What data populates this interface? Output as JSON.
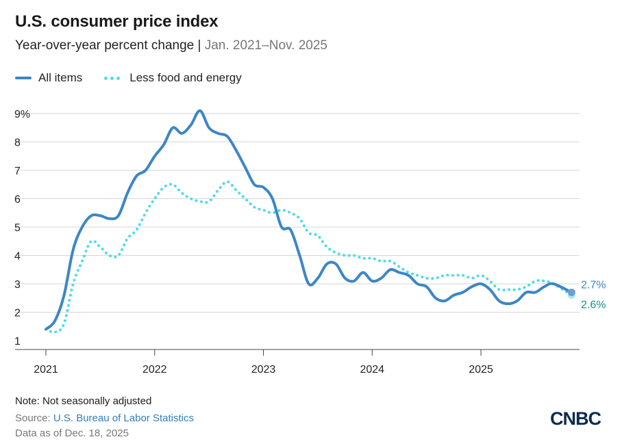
{
  "header": {
    "title": "U.S. consumer price index",
    "subtitle_main": "Year-over-year percent change |",
    "subtitle_range": "Jan. 2021–Nov. 2025"
  },
  "legend": {
    "all_items": "All items",
    "core": "Less food and energy"
  },
  "footer": {
    "note": "Note: Not seasonally adjusted",
    "source_prefix": "Source:",
    "source_link": "U.S. Bureau of Labor Statistics",
    "as_of": "Data as of Dec. 18, 2025"
  },
  "brand": {
    "logo_text": "CNBC"
  },
  "colors": {
    "all_items": "#3c86c6",
    "core": "#4fdbe8",
    "core_label": "#1f8a85",
    "grid": "#d6d6d6",
    "axis": "#555555"
  },
  "chart_data": {
    "type": "line",
    "title": "U.S. consumer price index",
    "ylabel": "",
    "xlabel": "",
    "ylim": [
      1,
      9
    ],
    "yticks": [
      "1",
      "2",
      "3",
      "4",
      "5",
      "6",
      "7",
      "8",
      "9%"
    ],
    "xticks": [
      "2021",
      "2022",
      "2023",
      "2024",
      "2025"
    ],
    "grid": true,
    "legend_position": "top-left",
    "x": [
      "2021-01",
      "2021-02",
      "2021-03",
      "2021-04",
      "2021-05",
      "2021-06",
      "2021-07",
      "2021-08",
      "2021-09",
      "2021-10",
      "2021-11",
      "2021-12",
      "2022-01",
      "2022-02",
      "2022-03",
      "2022-04",
      "2022-05",
      "2022-06",
      "2022-07",
      "2022-08",
      "2022-09",
      "2022-10",
      "2022-11",
      "2022-12",
      "2023-01",
      "2023-02",
      "2023-03",
      "2023-04",
      "2023-05",
      "2023-06",
      "2023-07",
      "2023-08",
      "2023-09",
      "2023-10",
      "2023-11",
      "2023-12",
      "2024-01",
      "2024-02",
      "2024-03",
      "2024-04",
      "2024-05",
      "2024-06",
      "2024-07",
      "2024-08",
      "2024-09",
      "2024-10",
      "2024-11",
      "2024-12",
      "2025-01",
      "2025-02",
      "2025-03",
      "2025-04",
      "2025-05",
      "2025-06",
      "2025-07",
      "2025-08",
      "2025-09",
      "2025-10",
      "2025-11"
    ],
    "series": [
      {
        "name": "All items",
        "values": [
          1.4,
          1.7,
          2.6,
          4.2,
          5.0,
          5.4,
          5.4,
          5.3,
          5.4,
          6.2,
          6.8,
          7.0,
          7.5,
          7.9,
          8.5,
          8.3,
          8.6,
          9.1,
          8.5,
          8.3,
          8.2,
          7.7,
          7.1,
          6.5,
          6.4,
          6.0,
          5.0,
          4.9,
          4.0,
          3.0,
          3.2,
          3.7,
          3.7,
          3.2,
          3.1,
          3.4,
          3.1,
          3.2,
          3.5,
          3.4,
          3.3,
          3.0,
          2.9,
          2.5,
          2.4,
          2.6,
          2.7,
          2.9,
          3.0,
          2.8,
          2.4,
          2.3,
          2.4,
          2.7,
          2.7,
          2.9,
          3.0,
          null,
          2.7
        ],
        "end_label": "2.7%"
      },
      {
        "name": "Less food and energy",
        "values": [
          1.4,
          1.3,
          1.6,
          3.0,
          3.8,
          4.5,
          4.3,
          4.0,
          4.0,
          4.6,
          4.9,
          5.5,
          6.0,
          6.4,
          6.5,
          6.2,
          6.0,
          5.9,
          5.9,
          6.3,
          6.6,
          6.3,
          6.0,
          5.7,
          5.6,
          5.5,
          5.6,
          5.5,
          5.3,
          4.8,
          4.7,
          4.3,
          4.1,
          4.0,
          4.0,
          3.9,
          3.9,
          3.8,
          3.8,
          3.6,
          3.4,
          3.3,
          3.2,
          3.2,
          3.3,
          3.3,
          3.3,
          3.2,
          3.3,
          3.1,
          2.8,
          2.8,
          2.8,
          2.9,
          3.1,
          3.1,
          3.0,
          null,
          2.6
        ],
        "end_label": "2.6%"
      }
    ]
  }
}
